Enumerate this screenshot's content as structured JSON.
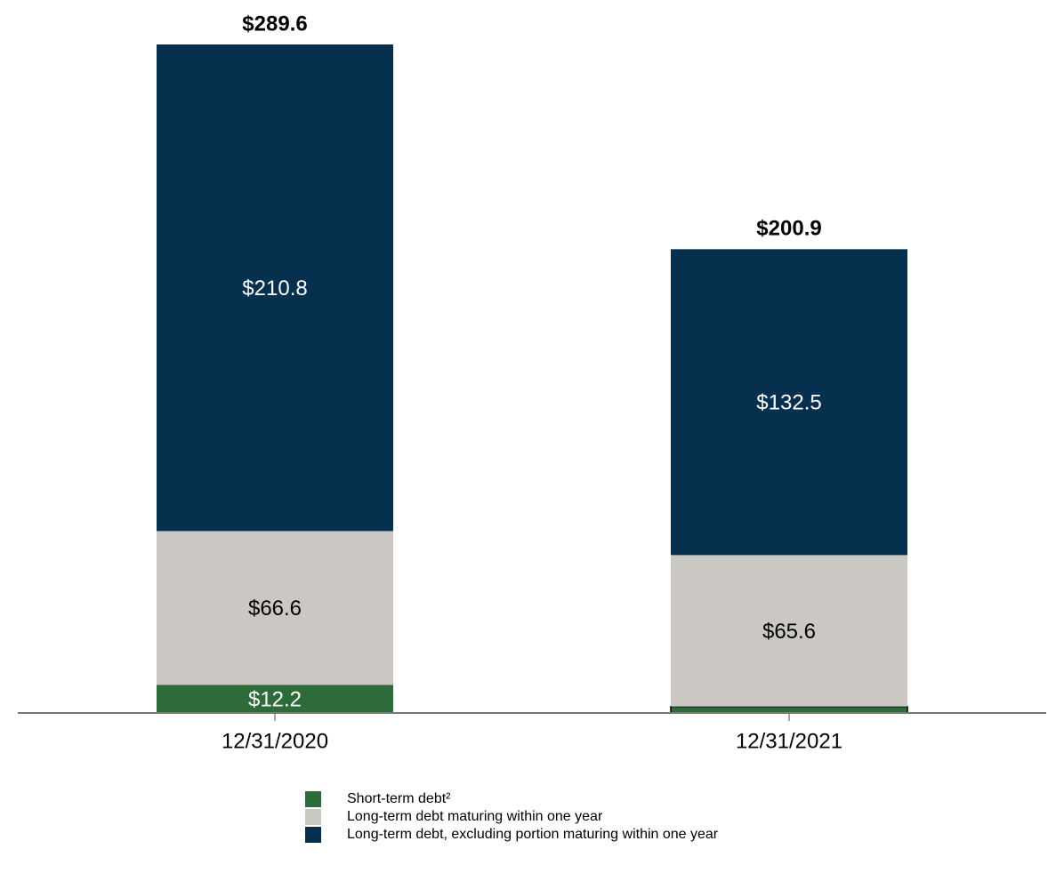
{
  "chart_data": {
    "type": "stacked_bar",
    "categories": [
      "12/31/2020",
      "12/31/2021"
    ],
    "series": [
      {
        "name": "Short-term debt²",
        "color": "#2e6b3a",
        "values": [
          12.2,
          2.8
        ],
        "value_labels": [
          "$12.2",
          null
        ]
      },
      {
        "name": "Long-term debt maturing within one year",
        "color": "#cbc8c3",
        "values": [
          66.6,
          65.6
        ],
        "value_labels": [
          "$66.6",
          "$65.6"
        ]
      },
      {
        "name": "Long-term debt, excluding portion maturing within one year",
        "color": "#06304d",
        "values": [
          210.8,
          132.5
        ],
        "value_labels": [
          "$210.8",
          "$132.5"
        ]
      }
    ],
    "totals": {
      "values": [
        289.6,
        200.9
      ],
      "value_labels": [
        "$289.6",
        "$200.9"
      ]
    }
  }
}
